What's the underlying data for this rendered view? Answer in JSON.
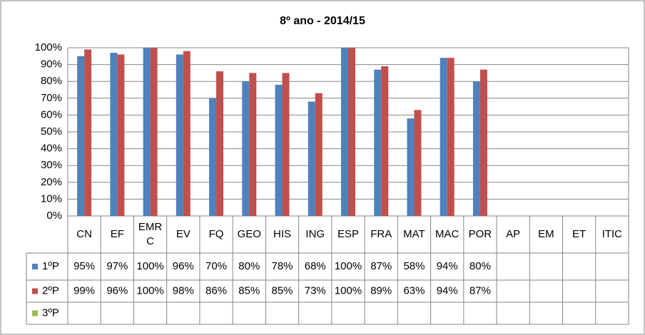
{
  "chart_data": {
    "type": "bar",
    "title": "8º ano - 2014/15",
    "categories": [
      "CN",
      "EF",
      "EMRC",
      "EV",
      "FQ",
      "GEO",
      "HIS",
      "ING",
      "ESP",
      "FRA",
      "MAT",
      "MAC",
      "POR",
      "AP",
      "EM",
      "ET",
      "ITIC"
    ],
    "series": [
      {
        "name": "1ºP",
        "color": "#4f81bd",
        "values": [
          95,
          97,
          100,
          96,
          70,
          80,
          78,
          68,
          100,
          87,
          58,
          94,
          80,
          null,
          null,
          null,
          null
        ],
        "value_labels": [
          "95%",
          "97%",
          "100%",
          "96%",
          "70%",
          "80%",
          "78%",
          "68%",
          "100%",
          "87%",
          "58%",
          "94%",
          "80%",
          null,
          null,
          null,
          null
        ]
      },
      {
        "name": "2ºP",
        "color": "#c0504d",
        "values": [
          99,
          96,
          100,
          98,
          86,
          85,
          85,
          73,
          100,
          89,
          63,
          94,
          87,
          null,
          null,
          null,
          null
        ],
        "value_labels": [
          "99%",
          "96%",
          "100%",
          "98%",
          "86%",
          "85%",
          "85%",
          "73%",
          "100%",
          "89%",
          "63%",
          "94%",
          "87%",
          null,
          null,
          null,
          null
        ]
      },
      {
        "name": "3ºP",
        "color": "#9bbb59",
        "values": [
          null,
          null,
          null,
          null,
          null,
          null,
          null,
          null,
          null,
          null,
          null,
          null,
          null,
          null,
          null,
          null,
          null
        ],
        "value_labels": [
          null,
          null,
          null,
          null,
          null,
          null,
          null,
          null,
          null,
          null,
          null,
          null,
          null,
          null,
          null,
          null,
          null
        ]
      }
    ],
    "ylim": [
      0,
      100
    ],
    "yticks": [
      {
        "value": 0,
        "label": "0%"
      },
      {
        "value": 10,
        "label": "10%"
      },
      {
        "value": 20,
        "label": "20%"
      },
      {
        "value": 30,
        "label": "30%"
      },
      {
        "value": 40,
        "label": "40%"
      },
      {
        "value": 50,
        "label": "50%"
      },
      {
        "value": 60,
        "label": "60%"
      },
      {
        "value": 70,
        "label": "70%"
      },
      {
        "value": 80,
        "label": "80%"
      },
      {
        "value": 90,
        "label": "90%"
      },
      {
        "value": 100,
        "label": "100%"
      }
    ],
    "grid": true
  }
}
